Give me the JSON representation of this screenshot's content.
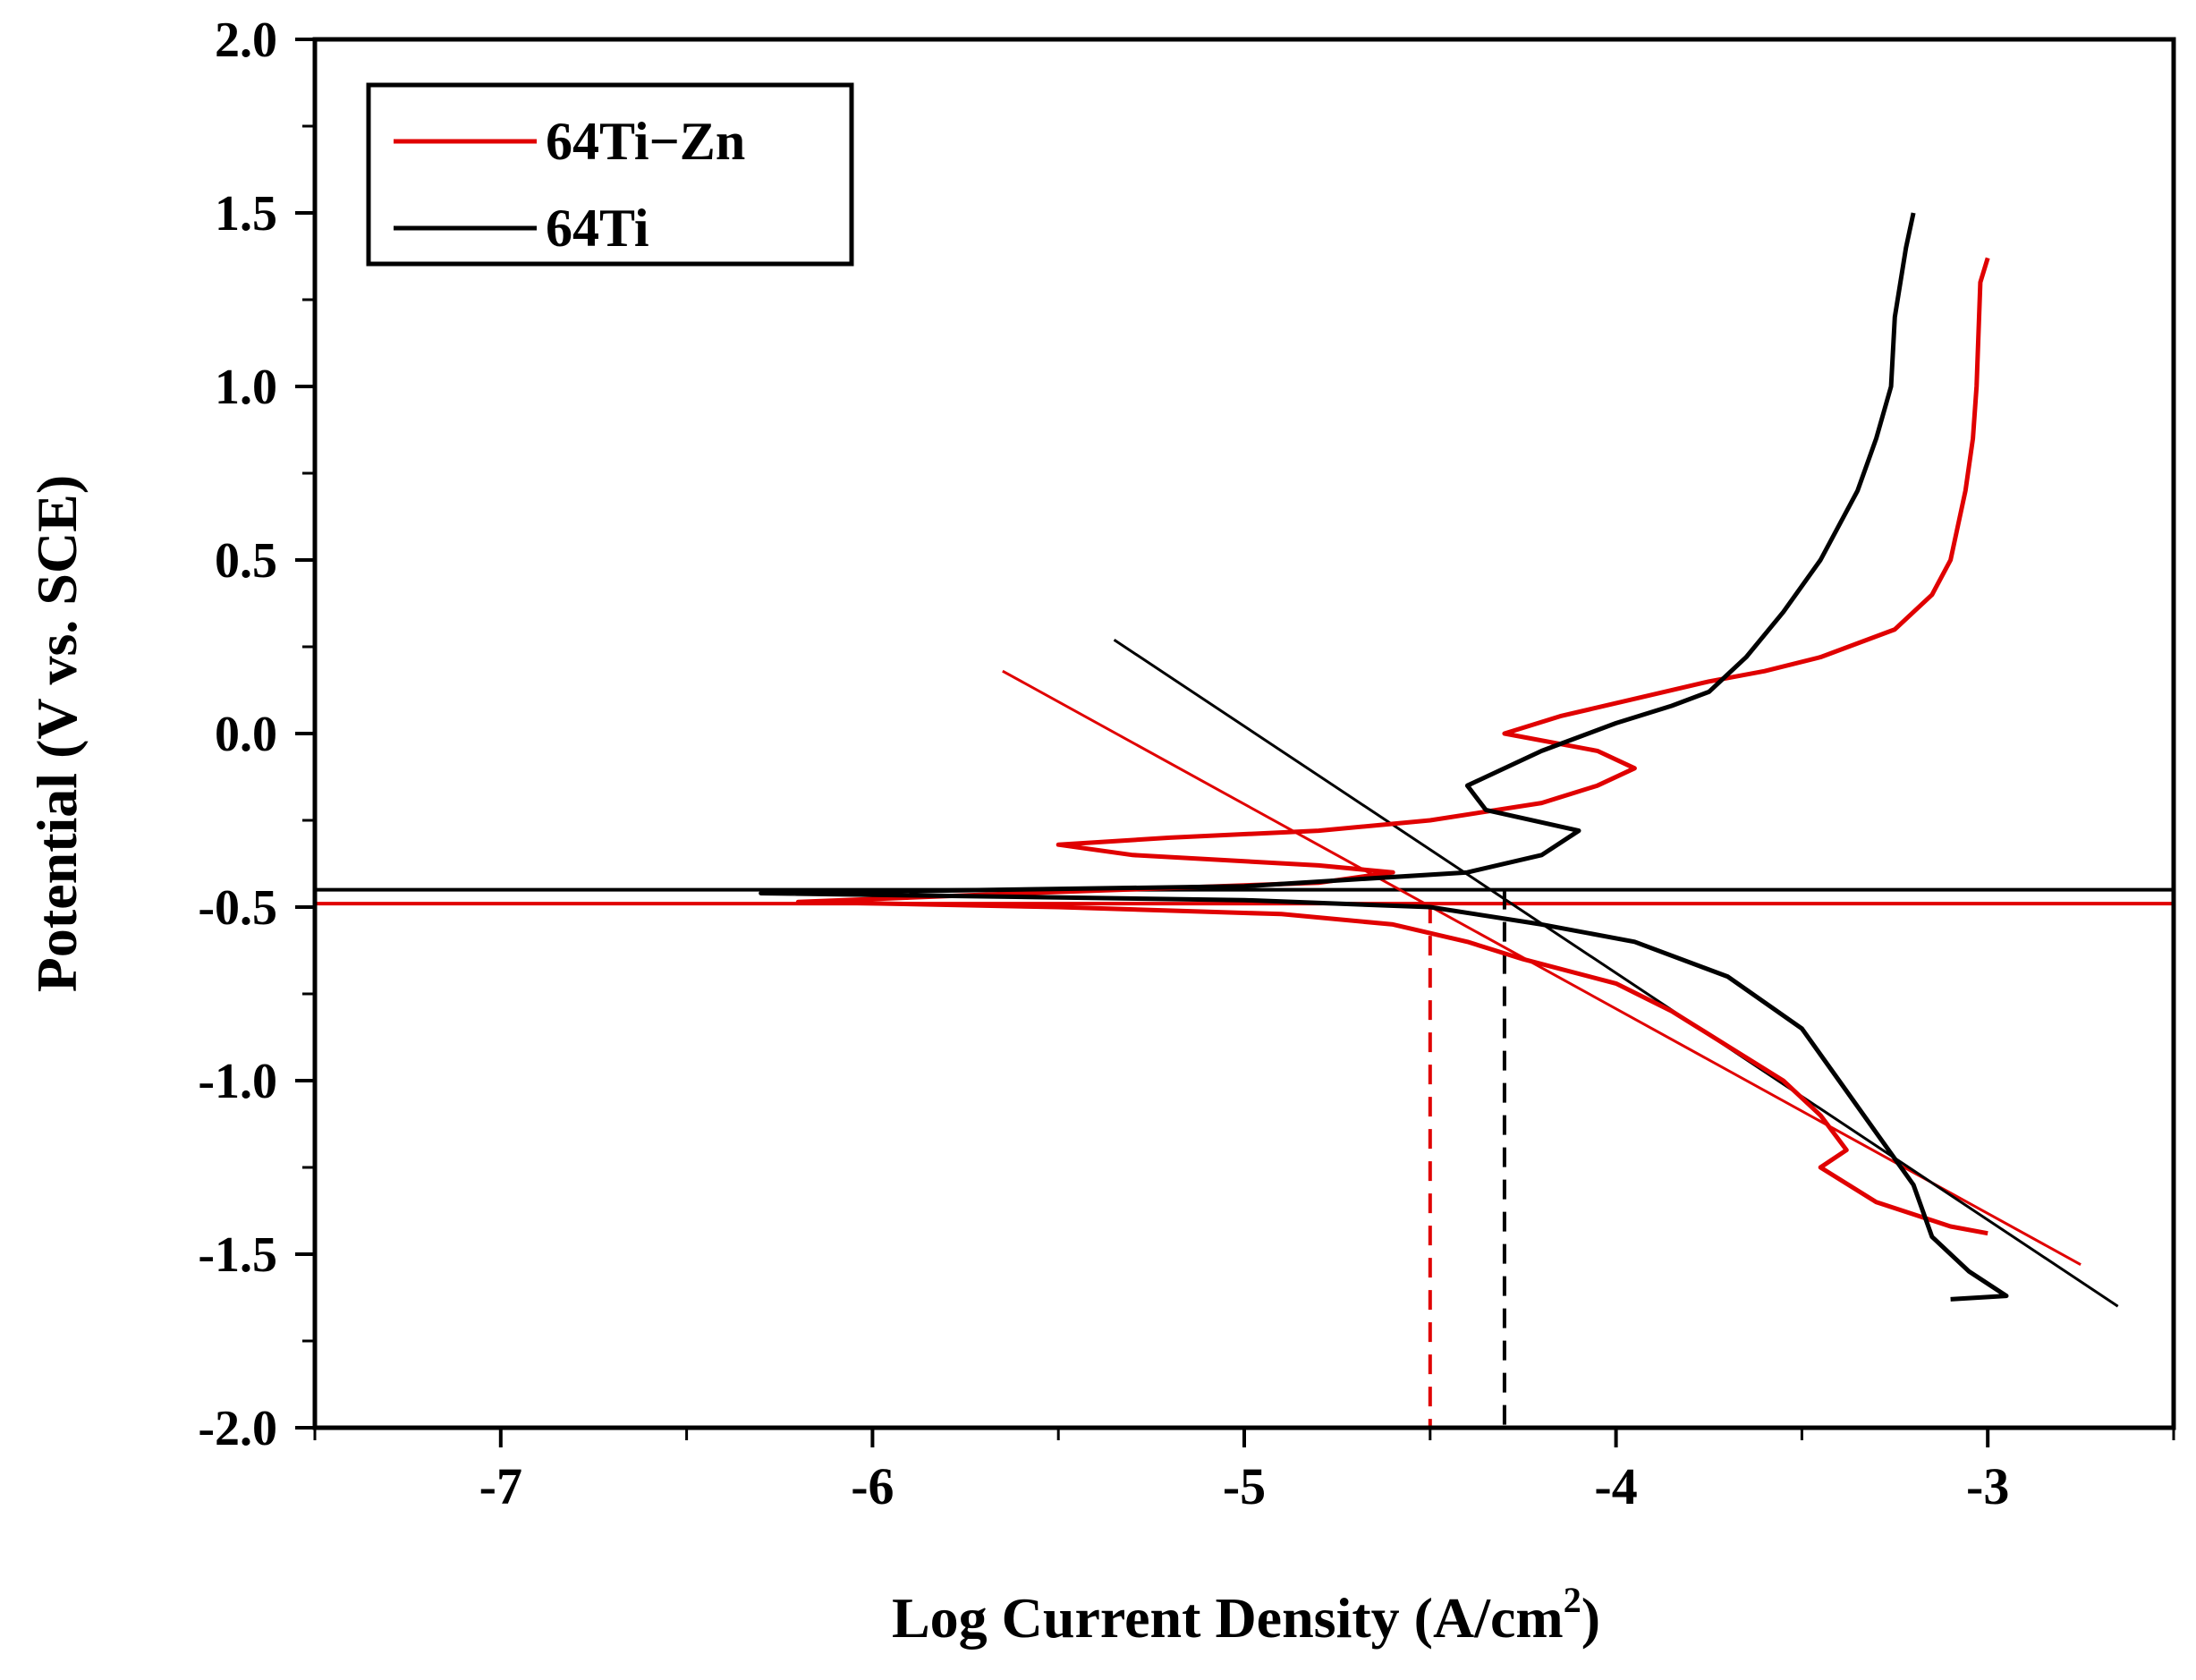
{
  "chart_data": {
    "type": "line",
    "title": "",
    "xlabel": "Log Current Density (A/cm",
    "xlabel_sup": "2",
    "xlabel_close": ")",
    "ylabel": "Potential (V vs. SCE)",
    "xlim": [
      -7.5,
      -2.5
    ],
    "ylim": [
      -2.0,
      2.0
    ],
    "xticks": [
      -7,
      -6,
      -5,
      -4,
      -3
    ],
    "xtick_labels": [
      "-7",
      "-6",
      "-5",
      "-4",
      "-3"
    ],
    "yticks": [
      -2.0,
      -1.5,
      -1.0,
      -0.5,
      0.0,
      0.5,
      1.0,
      1.5,
      2.0
    ],
    "ytick_labels": [
      "-2.0",
      "-1.5",
      "-1.0",
      "-0.5",
      "0.0",
      "0.5",
      "1.0",
      "1.5",
      "2.0"
    ],
    "legend_position": "top-left",
    "series": [
      {
        "name": "64Ti−Zn",
        "color": "#e00000",
        "points": [
          [
            -3.0,
            1.37
          ],
          [
            -3.02,
            1.3
          ],
          [
            -3.03,
            1.0
          ],
          [
            -3.04,
            0.85
          ],
          [
            -3.06,
            0.7
          ],
          [
            -3.1,
            0.5
          ],
          [
            -3.15,
            0.4
          ],
          [
            -3.25,
            0.3
          ],
          [
            -3.45,
            0.22
          ],
          [
            -3.6,
            0.18
          ],
          [
            -3.75,
            0.15
          ],
          [
            -3.95,
            0.1
          ],
          [
            -4.15,
            0.05
          ],
          [
            -4.3,
            0.0
          ],
          [
            -4.05,
            -0.05
          ],
          [
            -3.95,
            -0.1
          ],
          [
            -4.05,
            -0.15
          ],
          [
            -4.2,
            -0.2
          ],
          [
            -4.5,
            -0.25
          ],
          [
            -4.8,
            -0.28
          ],
          [
            -5.2,
            -0.3
          ],
          [
            -5.5,
            -0.32
          ],
          [
            -5.3,
            -0.35
          ],
          [
            -4.8,
            -0.38
          ],
          [
            -4.6,
            -0.4
          ],
          [
            -4.8,
            -0.43
          ],
          [
            -5.6,
            -0.46
          ],
          [
            -6.2,
            -0.485
          ],
          [
            -5.5,
            -0.5
          ],
          [
            -4.9,
            -0.52
          ],
          [
            -4.6,
            -0.55
          ],
          [
            -4.4,
            -0.6
          ],
          [
            -4.25,
            -0.65
          ],
          [
            -4.0,
            -0.72
          ],
          [
            -3.85,
            -0.8
          ],
          [
            -3.7,
            -0.9
          ],
          [
            -3.55,
            -1.0
          ],
          [
            -3.45,
            -1.1
          ],
          [
            -3.38,
            -1.2
          ],
          [
            -3.45,
            -1.25
          ],
          [
            -3.3,
            -1.35
          ],
          [
            -3.1,
            -1.42
          ],
          [
            -3.0,
            -1.44
          ]
        ]
      },
      {
        "name": "64Ti",
        "color": "#000000",
        "points": [
          [
            -3.2,
            1.5
          ],
          [
            -3.22,
            1.4
          ],
          [
            -3.25,
            1.2
          ],
          [
            -3.26,
            1.0
          ],
          [
            -3.3,
            0.85
          ],
          [
            -3.35,
            0.7
          ],
          [
            -3.45,
            0.5
          ],
          [
            -3.55,
            0.35
          ],
          [
            -3.65,
            0.22
          ],
          [
            -3.75,
            0.12
          ],
          [
            -3.85,
            0.08
          ],
          [
            -4.0,
            0.03
          ],
          [
            -4.2,
            -0.05
          ],
          [
            -4.4,
            -0.15
          ],
          [
            -4.35,
            -0.22
          ],
          [
            -4.1,
            -0.28
          ],
          [
            -4.2,
            -0.35
          ],
          [
            -4.4,
            -0.4
          ],
          [
            -5.0,
            -0.44
          ],
          [
            -6.3,
            -0.46
          ],
          [
            -5.0,
            -0.48
          ],
          [
            -4.5,
            -0.5
          ],
          [
            -4.2,
            -0.55
          ],
          [
            -3.95,
            -0.6
          ],
          [
            -3.7,
            -0.7
          ],
          [
            -3.5,
            -0.85
          ],
          [
            -3.4,
            -1.0
          ],
          [
            -3.3,
            -1.15
          ],
          [
            -3.2,
            -1.3
          ],
          [
            -3.15,
            -1.45
          ],
          [
            -3.05,
            -1.55
          ],
          [
            -2.95,
            -1.62
          ],
          [
            -3.1,
            -1.63
          ]
        ]
      }
    ],
    "tafel_lines": [
      {
        "series": "64Ti−Zn",
        "color": "#e00000",
        "x": [
          -5.65,
          -2.75
        ],
        "y": [
          0.18,
          -1.53
        ]
      },
      {
        "series": "64Ti",
        "color": "#000000",
        "x": [
          -5.35,
          -2.65
        ],
        "y": [
          0.27,
          -1.65
        ]
      }
    ],
    "reference_lines": [
      {
        "series": "64Ti−Zn",
        "color": "#e00000",
        "Ecorr": -0.49,
        "log_icorr": -4.5
      },
      {
        "series": "64Ti",
        "color": "#000000",
        "Ecorr": -0.45,
        "log_icorr": -4.3
      }
    ]
  }
}
